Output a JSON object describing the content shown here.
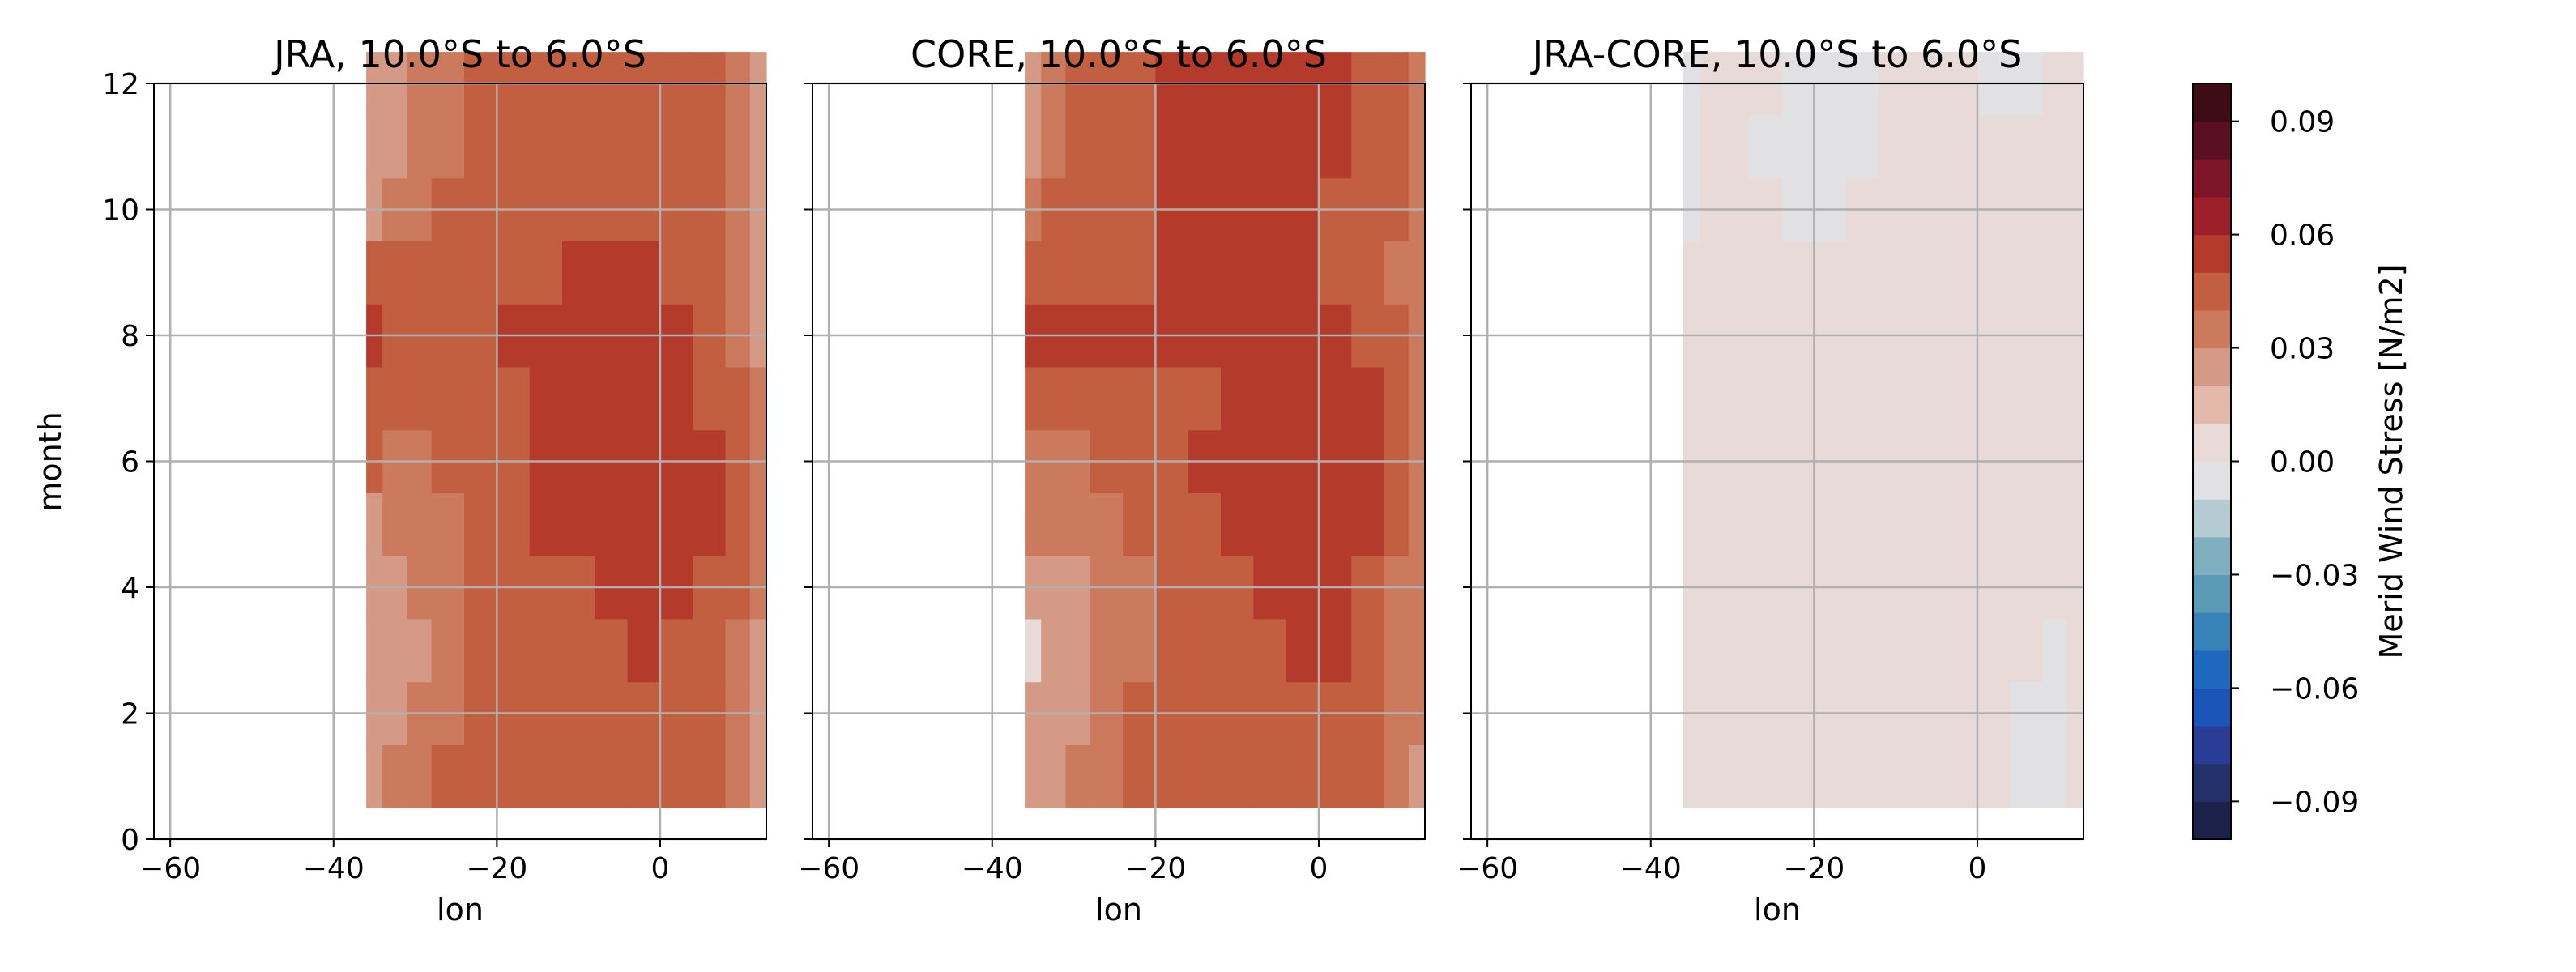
{
  "chart_data": {
    "type": "heatmap",
    "xlabel": "lon",
    "ylabel": "month",
    "xlim": [
      -62,
      13
    ],
    "ylim": [
      0,
      12
    ],
    "x_ticks": [
      -60,
      -40,
      -20,
      0
    ],
    "x_tick_labels": [
      "−60",
      "−40",
      "−20",
      "0"
    ],
    "y_ticks": [
      0,
      2,
      4,
      6,
      8,
      10,
      12
    ],
    "y_tick_labels": [
      "0",
      "2",
      "4",
      "6",
      "8",
      "10",
      "12"
    ],
    "grid": true,
    "lon_edges": [
      -36,
      -34,
      -31,
      -28,
      -24,
      -20,
      -16,
      -12,
      -8,
      -4,
      0,
      4,
      8,
      11,
      13
    ],
    "months": [
      1,
      2,
      3,
      4,
      5,
      6,
      7,
      8,
      9,
      10,
      11,
      12
    ],
    "panels": [
      {
        "title": "JRA, 10.0°S to 6.0°S",
        "values": [
          [
            0.02,
            0.03,
            0.03,
            0.04,
            0.04,
            0.04,
            0.04,
            0.04,
            0.04,
            0.04,
            0.04,
            0.04,
            0.03,
            0.02
          ],
          [
            0.02,
            0.02,
            0.03,
            0.03,
            0.04,
            0.04,
            0.04,
            0.04,
            0.04,
            0.04,
            0.04,
            0.04,
            0.03,
            0.02
          ],
          [
            0.02,
            0.02,
            0.02,
            0.03,
            0.04,
            0.04,
            0.04,
            0.04,
            0.04,
            0.05,
            0.04,
            0.04,
            0.03,
            0.02
          ],
          [
            0.02,
            0.02,
            0.03,
            0.03,
            0.04,
            0.04,
            0.04,
            0.04,
            0.05,
            0.05,
            0.05,
            0.04,
            0.04,
            0.03
          ],
          [
            0.02,
            0.03,
            0.03,
            0.03,
            0.04,
            0.04,
            0.05,
            0.05,
            0.05,
            0.05,
            0.05,
            0.05,
            0.04,
            0.03
          ],
          [
            0.04,
            0.03,
            0.03,
            0.04,
            0.04,
            0.04,
            0.05,
            0.05,
            0.05,
            0.05,
            0.05,
            0.05,
            0.04,
            0.03
          ],
          [
            0.04,
            0.04,
            0.04,
            0.04,
            0.04,
            0.04,
            0.05,
            0.05,
            0.05,
            0.05,
            0.05,
            0.04,
            0.04,
            0.03
          ],
          [
            0.05,
            0.04,
            0.04,
            0.04,
            0.04,
            0.05,
            0.05,
            0.05,
            0.05,
            0.05,
            0.05,
            0.04,
            0.03,
            0.02
          ],
          [
            0.04,
            0.04,
            0.04,
            0.04,
            0.04,
            0.04,
            0.04,
            0.05,
            0.05,
            0.05,
            0.04,
            0.04,
            0.03,
            0.02
          ],
          [
            0.02,
            0.03,
            0.03,
            0.04,
            0.04,
            0.04,
            0.04,
            0.04,
            0.04,
            0.04,
            0.04,
            0.04,
            0.03,
            0.02
          ],
          [
            0.02,
            0.02,
            0.03,
            0.03,
            0.04,
            0.04,
            0.04,
            0.04,
            0.04,
            0.04,
            0.04,
            0.04,
            0.03,
            0.02
          ],
          [
            0.02,
            0.02,
            0.03,
            0.03,
            0.04,
            0.04,
            0.04,
            0.04,
            0.04,
            0.04,
            0.04,
            0.04,
            0.03,
            0.02
          ]
        ]
      },
      {
        "title": "CORE, 10.0°S to 6.0°S",
        "values": [
          [
            0.02,
            0.02,
            0.03,
            0.03,
            0.04,
            0.04,
            0.04,
            0.04,
            0.04,
            0.04,
            0.04,
            0.04,
            0.03,
            0.02
          ],
          [
            0.02,
            0.02,
            0.02,
            0.03,
            0.04,
            0.04,
            0.04,
            0.04,
            0.04,
            0.04,
            0.04,
            0.04,
            0.03,
            0.03
          ],
          [
            0.01,
            0.02,
            0.02,
            0.03,
            0.03,
            0.04,
            0.04,
            0.04,
            0.04,
            0.05,
            0.05,
            0.04,
            0.03,
            0.03
          ],
          [
            0.02,
            0.02,
            0.02,
            0.03,
            0.03,
            0.04,
            0.04,
            0.04,
            0.05,
            0.05,
            0.05,
            0.04,
            0.03,
            0.03
          ],
          [
            0.03,
            0.03,
            0.03,
            0.03,
            0.04,
            0.04,
            0.04,
            0.05,
            0.05,
            0.06,
            0.06,
            0.05,
            0.04,
            0.03
          ],
          [
            0.03,
            0.03,
            0.03,
            0.04,
            0.04,
            0.04,
            0.05,
            0.05,
            0.05,
            0.05,
            0.05,
            0.05,
            0.04,
            0.03
          ],
          [
            0.04,
            0.04,
            0.04,
            0.04,
            0.04,
            0.04,
            0.04,
            0.05,
            0.05,
            0.05,
            0.05,
            0.05,
            0.04,
            0.03
          ],
          [
            0.05,
            0.05,
            0.05,
            0.05,
            0.05,
            0.05,
            0.05,
            0.05,
            0.05,
            0.05,
            0.05,
            0.04,
            0.04,
            0.03
          ],
          [
            0.04,
            0.04,
            0.04,
            0.04,
            0.04,
            0.05,
            0.05,
            0.05,
            0.05,
            0.05,
            0.04,
            0.04,
            0.03,
            0.03
          ],
          [
            0.03,
            0.04,
            0.04,
            0.04,
            0.04,
            0.05,
            0.05,
            0.05,
            0.05,
            0.05,
            0.04,
            0.04,
            0.04,
            0.03
          ],
          [
            0.02,
            0.03,
            0.04,
            0.04,
            0.04,
            0.05,
            0.05,
            0.05,
            0.05,
            0.05,
            0.05,
            0.04,
            0.04,
            0.03
          ],
          [
            0.02,
            0.03,
            0.04,
            0.04,
            0.04,
            0.05,
            0.05,
            0.05,
            0.05,
            0.05,
            0.05,
            0.04,
            0.04,
            0.03
          ]
        ]
      },
      {
        "title": "JRA-CORE, 10.0°S to 6.0°S",
        "values": [
          [
            0.0,
            0.0,
            0.0,
            0.0,
            0.0,
            0.0,
            0.0,
            0.0,
            0.0,
            0.0,
            0.0,
            -0.01,
            -0.01,
            0.0
          ],
          [
            0.0,
            0.0,
            0.0,
            0.0,
            0.0,
            0.0,
            0.0,
            0.0,
            0.0,
            0.0,
            0.0,
            -0.01,
            -0.01,
            0.0
          ],
          [
            0.0,
            0.0,
            0.0,
            0.0,
            0.0,
            0.0,
            0.0,
            0.0,
            0.0,
            0.0,
            0.0,
            0.0,
            -0.01,
            0.0
          ],
          [
            0.0,
            0.0,
            0.0,
            0.0,
            0.0,
            0.0,
            0.0,
            0.0,
            0.0,
            0.0,
            0.0,
            0.0,
            0.0,
            0.0
          ],
          [
            0.0,
            0.0,
            0.0,
            0.0,
            0.0,
            0.0,
            0.0,
            0.0,
            0.0,
            0.0,
            0.0,
            0.0,
            0.0,
            0.0
          ],
          [
            0.0,
            0.0,
            0.0,
            0.0,
            0.0,
            0.0,
            0.0,
            0.0,
            0.0,
            0.0,
            0.0,
            0.0,
            0.0,
            0.0
          ],
          [
            0.0,
            0.0,
            0.0,
            0.0,
            0.0,
            0.0,
            0.0,
            0.0,
            0.0,
            0.0,
            0.0,
            0.0,
            0.0,
            0.0
          ],
          [
            0.0,
            0.0,
            0.0,
            0.0,
            0.0,
            0.0,
            0.0,
            0.0,
            0.0,
            0.0,
            0.0,
            0.0,
            0.0,
            0.0
          ],
          [
            0.0,
            0.0,
            0.0,
            0.0,
            0.0,
            0.0,
            0.0,
            0.0,
            0.0,
            0.0,
            0.0,
            0.0,
            0.0,
            0.0
          ],
          [
            -0.01,
            0.0,
            0.0,
            0.0,
            -0.01,
            -0.01,
            0.0,
            0.0,
            0.0,
            0.0,
            0.0,
            0.0,
            0.0,
            0.0
          ],
          [
            -0.01,
            0.0,
            0.0,
            -0.01,
            -0.01,
            -0.01,
            -0.01,
            0.0,
            0.0,
            0.0,
            0.0,
            0.0,
            0.0,
            0.0
          ],
          [
            -0.01,
            0.0,
            0.0,
            0.0,
            -0.01,
            -0.01,
            -0.01,
            0.0,
            0.0,
            0.0,
            -0.01,
            -0.01,
            0.0,
            0.0
          ]
        ]
      }
    ],
    "colorbar": {
      "label": "Merid Wind Stress [N/m2]",
      "vmin": -0.1,
      "vmax": 0.1,
      "ticks": [
        0.09,
        0.06,
        0.03,
        0.0,
        -0.03,
        -0.06,
        -0.09
      ],
      "tick_labels": [
        "0.09",
        "0.06",
        "0.03",
        "0.00",
        "−0.03",
        "−0.06",
        "−0.09"
      ],
      "colors_low_to_high": [
        "#1b2148",
        "#243068",
        "#2a3d96",
        "#1b55b8",
        "#1e69bd",
        "#3782b7",
        "#5a9ab6",
        "#7fafbf",
        "#b6cad1",
        "#e1e1e3",
        "#e8dad6",
        "#e2b9ab",
        "#d49a85",
        "#cb7a5e",
        "#c35f41",
        "#b43a2c",
        "#9c1f2a",
        "#7d1427",
        "#5a1020",
        "#3d0c15"
      ]
    }
  }
}
